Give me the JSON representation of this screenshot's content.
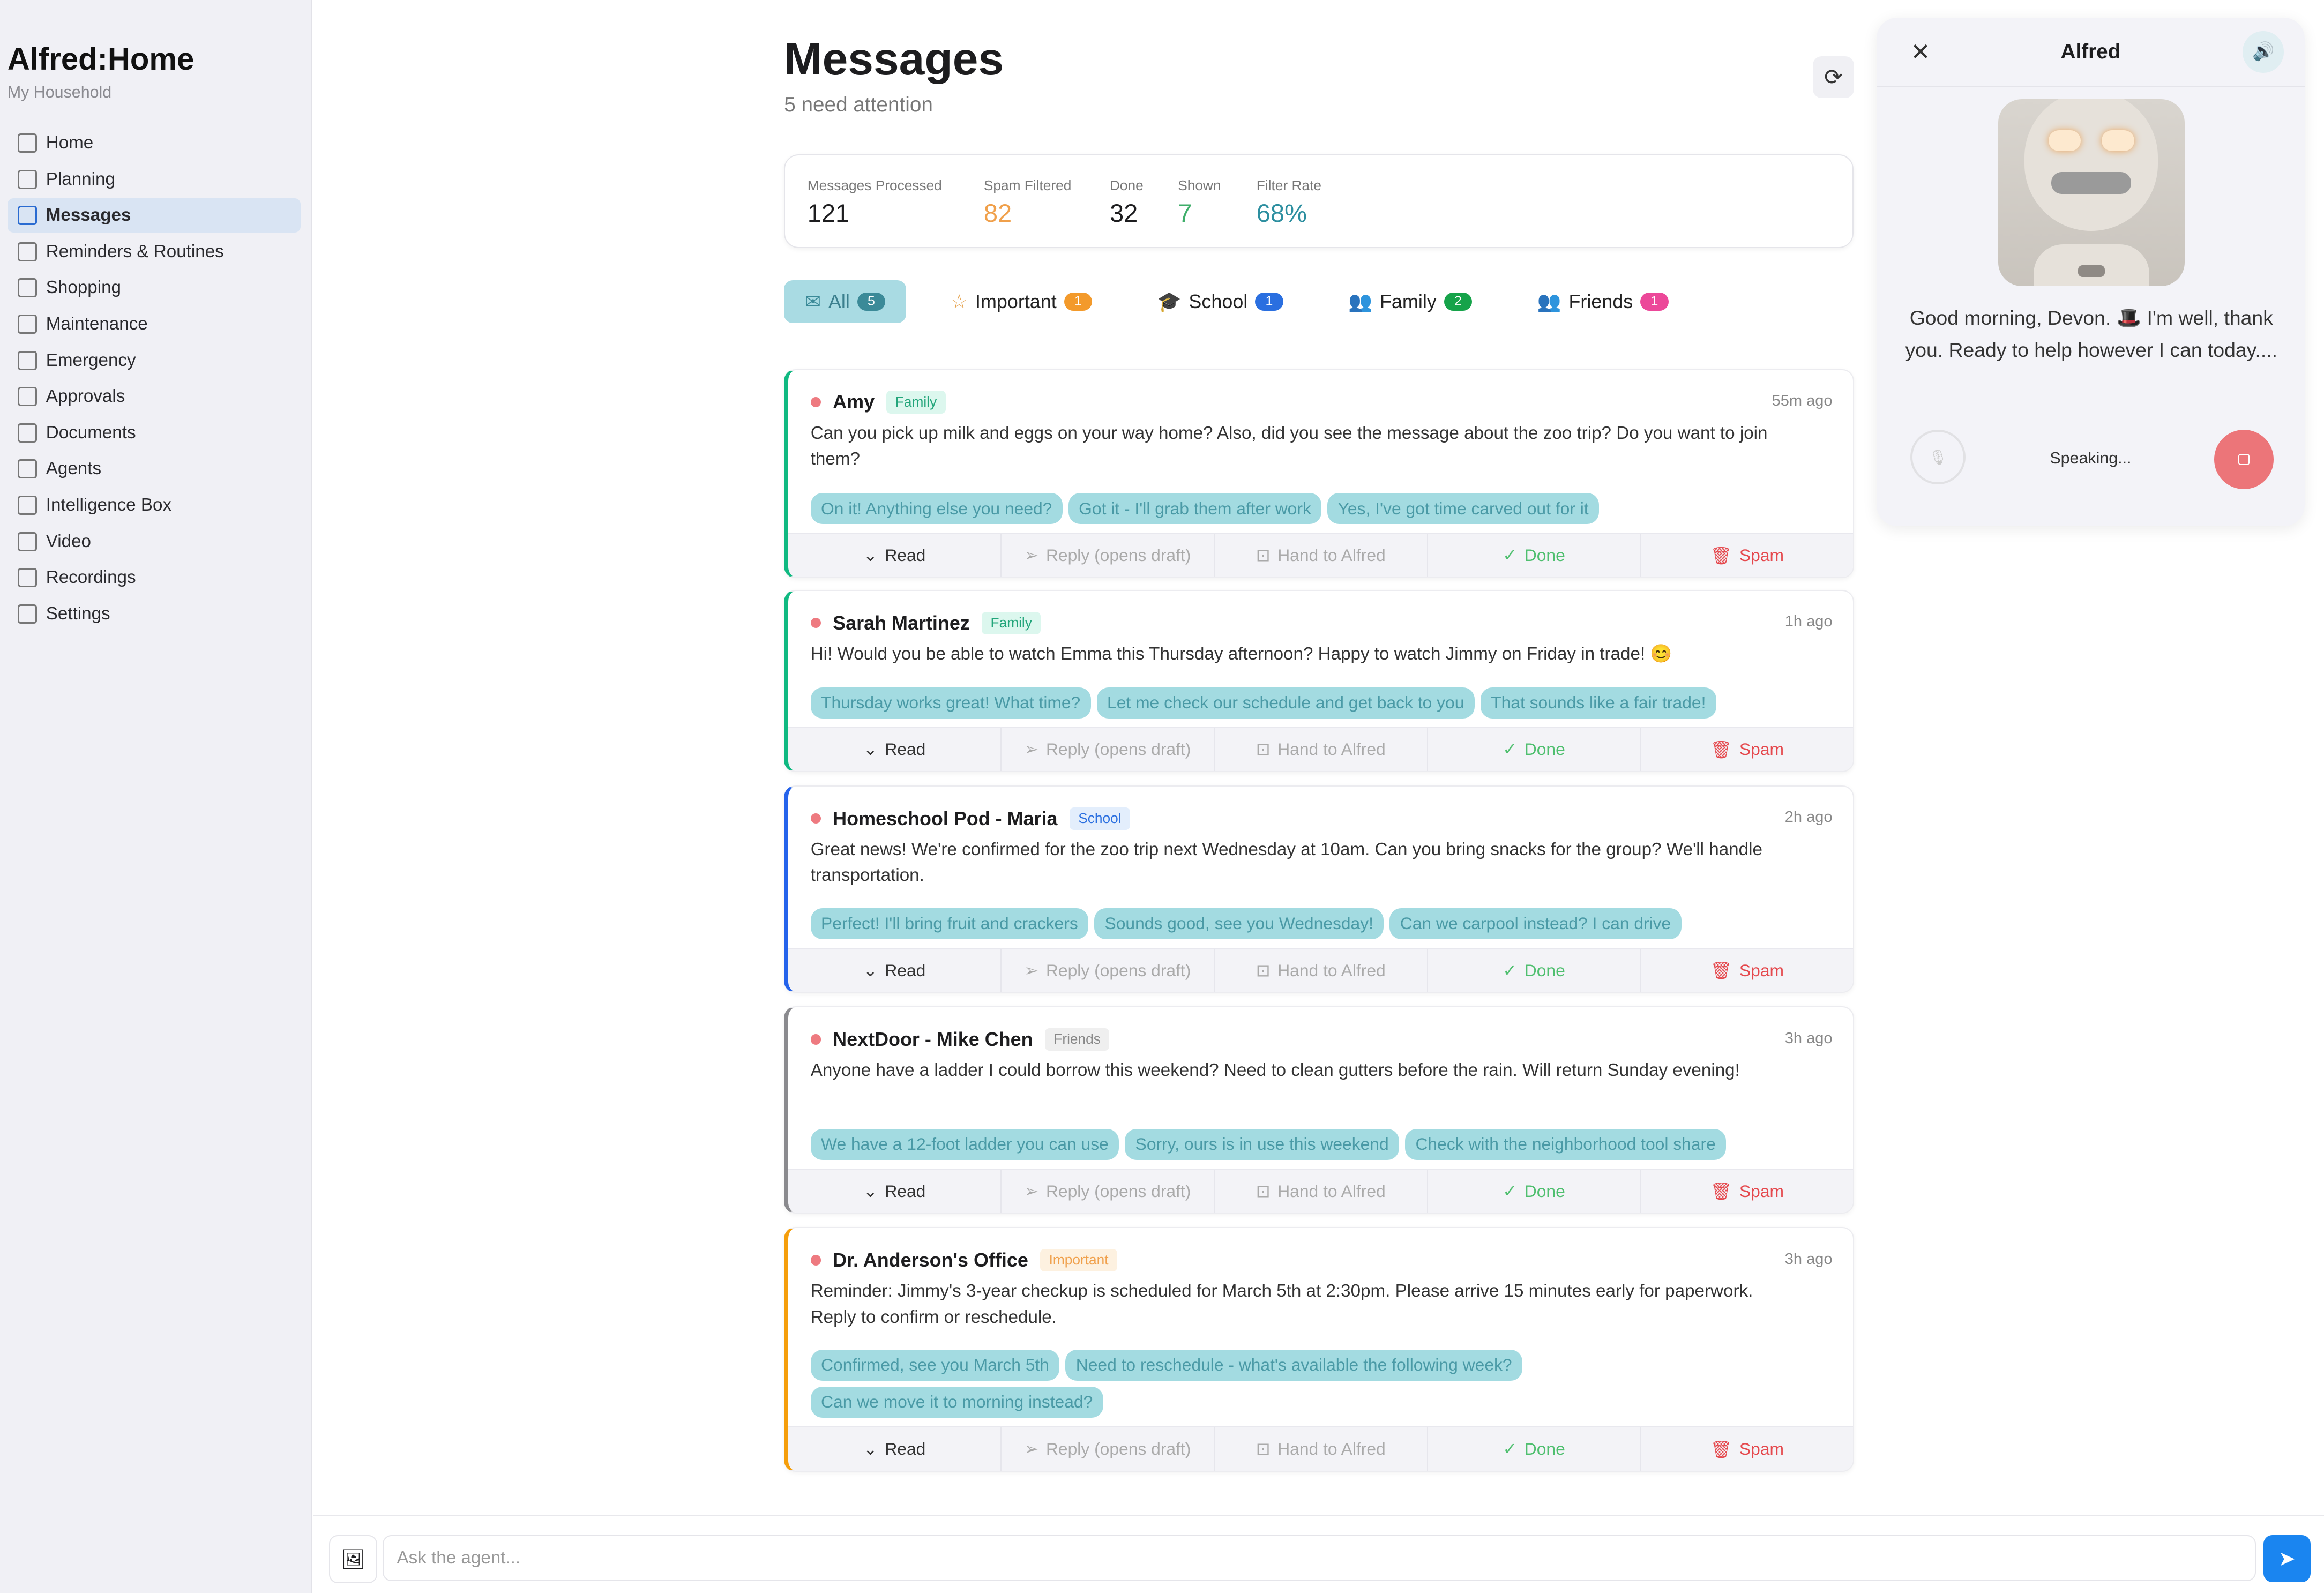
{
  "sidebar": {
    "brand": "Alfred:Home",
    "household": "My Household",
    "active": "Messages",
    "items": [
      {
        "label": "Home",
        "icon": "home-icon"
      },
      {
        "label": "Planning",
        "icon": "calendar-icon"
      },
      {
        "label": "Messages",
        "icon": "message-icon"
      },
      {
        "label": "Reminders & Routines",
        "icon": "checkbox-icon"
      },
      {
        "label": "Shopping",
        "icon": "cart-icon"
      },
      {
        "label": "Maintenance",
        "icon": "wrench-icon"
      },
      {
        "label": "Emergency",
        "icon": "shield-icon"
      },
      {
        "label": "Approvals",
        "icon": "clipboard-check-icon"
      },
      {
        "label": "Documents",
        "icon": "document-icon"
      },
      {
        "label": "Agents",
        "icon": "robot-icon"
      },
      {
        "label": "Intelligence Box",
        "icon": "server-icon"
      },
      {
        "label": "Video",
        "icon": "video-icon"
      },
      {
        "label": "Recordings",
        "icon": "file-icon"
      },
      {
        "label": "Settings",
        "icon": "gear-icon"
      }
    ]
  },
  "header": {
    "title": "Messages",
    "subtitle": "5 need attention",
    "refresh_icon": "refresh-icon"
  },
  "stats": [
    {
      "label": "Messages Processed",
      "value": "121",
      "color": "#1d1d1f"
    },
    {
      "label": "Spam Filtered",
      "value": "82",
      "color": "#f0a04b"
    },
    {
      "label": "Done",
      "value": "32",
      "color": "#1d1d1f"
    },
    {
      "label": "Shown",
      "value": "7",
      "color": "#3fae6a"
    },
    {
      "label": "Filter Rate",
      "value": "68%",
      "color": "#2d8fa0"
    }
  ],
  "filters": [
    {
      "label": "All",
      "count": "5",
      "icon": "inbox-icon",
      "color": "#3b8a98"
    },
    {
      "label": "Important",
      "count": "1",
      "icon": "star-icon",
      "color": "#f39a2b"
    },
    {
      "label": "School",
      "count": "1",
      "icon": "graduation-cap-icon",
      "color": "#2a6fe0"
    },
    {
      "label": "Family",
      "count": "2",
      "icon": "users-icon",
      "color": "#16a34a"
    },
    {
      "label": "Friends",
      "count": "1",
      "icon": "users-icon",
      "color": "#ec4899"
    }
  ],
  "actions": {
    "read": "Read",
    "reply": "Reply (opens draft)",
    "hand": "Hand to Alfred",
    "done": "Done",
    "spam": "Spam"
  },
  "messages": [
    {
      "sender": "Amy",
      "tag": "Family",
      "time": "55m ago",
      "border": "#10b981",
      "body": "Can you pick up milk and eggs on your way home? Also, did you see the message about the zoo trip? Do you want to join them?",
      "replies": [
        "On it! Anything else you need?",
        "Got it - I'll grab them after work",
        "Yes, I've got time carved out for it"
      ]
    },
    {
      "sender": "Sarah Martinez",
      "tag": "Family",
      "time": "1h ago",
      "border": "#10b981",
      "body": "Hi! Would you be able to watch Emma this Thursday afternoon? Happy to watch Jimmy on Friday in trade! 😊",
      "replies": [
        "Thursday works great! What time?",
        "Let me check our schedule and get back to you",
        "That sounds like a fair trade!"
      ]
    },
    {
      "sender": "Homeschool Pod - Maria",
      "tag": "School",
      "time": "2h ago",
      "border": "#2563eb",
      "body": "Great news! We're confirmed for the zoo trip next Wednesday at 10am. Can you bring snacks for the group? We'll handle transportation.",
      "replies": [
        "Perfect! I'll bring fruit and crackers",
        "Sounds good, see you Wednesday!",
        "Can we carpool instead? I can drive"
      ]
    },
    {
      "sender": "NextDoor - Mike Chen",
      "tag": "Friends",
      "time": "3h ago",
      "border": "#8a8a8e",
      "body": "Anyone have a ladder I could borrow this weekend? Need to clean gutters before the rain. Will return Sunday evening!",
      "replies": [
        "We have a 12-foot ladder you can use",
        "Sorry, ours is in use this weekend",
        "Check with the neighborhood tool share"
      ]
    },
    {
      "sender": "Dr. Anderson's Office",
      "tag": "Important",
      "time": "3h ago",
      "border": "#f59e0b",
      "body": "Reminder: Jimmy's 3-year checkup is scheduled for March 5th at 2:30pm. Please arrive 15 minutes early for paperwork. Reply to confirm or reschedule.",
      "replies": [
        "Confirmed, see you March 5th",
        "Need to reschedule - what's available the following week?",
        "Can we move it to morning instead?"
      ]
    }
  ],
  "tag_colors": {
    "Family": {
      "bg": "#dcf7ee",
      "fg": "#22a57a"
    },
    "School": {
      "bg": "#e3eefc",
      "fg": "#2a6fe0"
    },
    "Friends": {
      "bg": "#efefef",
      "fg": "#888888"
    },
    "Important": {
      "bg": "#fdf1e0",
      "fg": "#f0a04b"
    }
  },
  "alfred": {
    "title": "Alfred",
    "message": "Good morning, Devon. 🎩 I'm well, thank you. Ready to help however I can today....",
    "status": "Speaking..."
  },
  "composer": {
    "placeholder": "Ask the agent..."
  }
}
